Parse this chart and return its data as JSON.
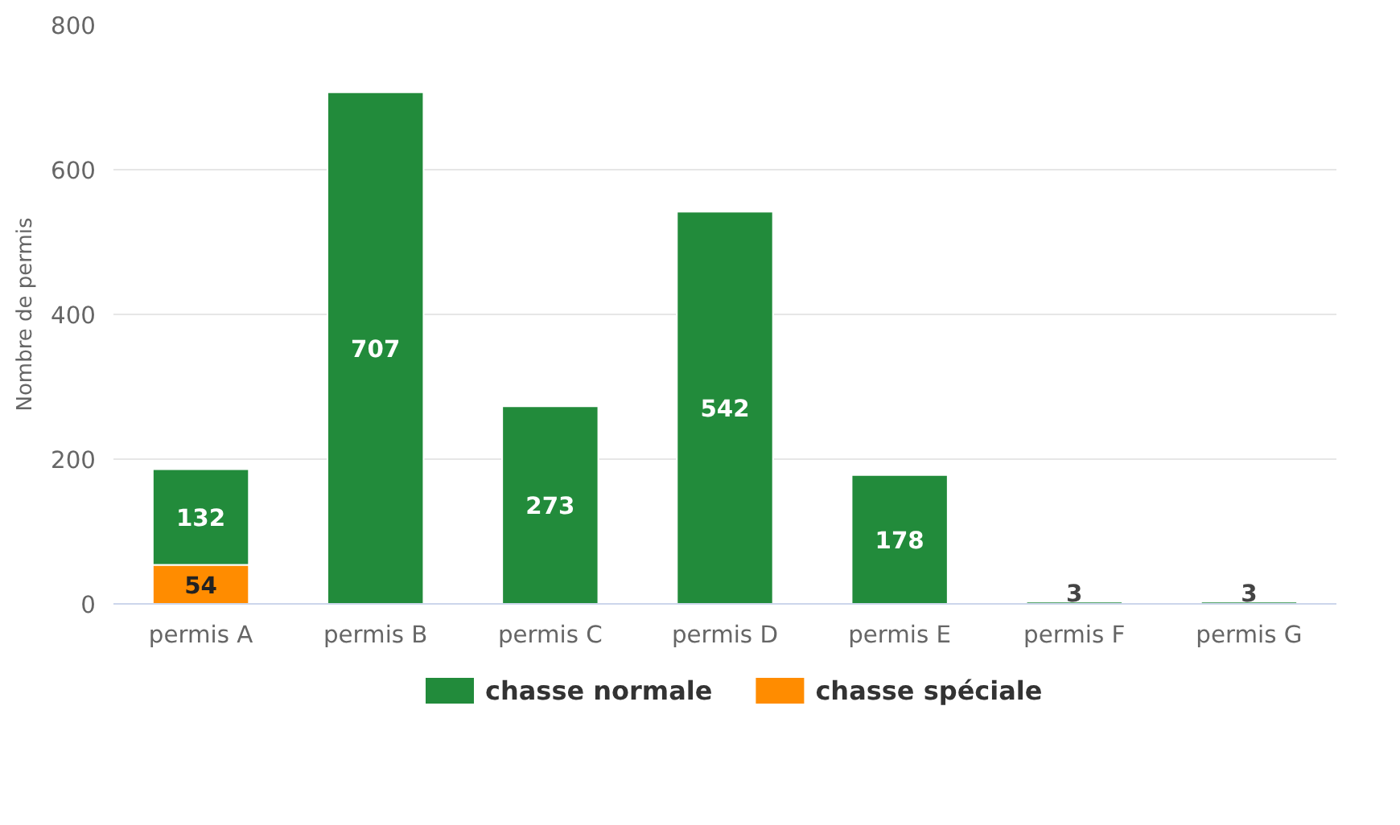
{
  "chart_data": {
    "type": "bar",
    "stacked": true,
    "ylabel": "Nombre de permis",
    "categories": [
      "permis A",
      "permis B",
      "permis C",
      "permis D",
      "permis E",
      "permis F",
      "permis G"
    ],
    "series": [
      {
        "name": "chasse spéciale",
        "color": "#ff8c00",
        "values": [
          54,
          null,
          null,
          null,
          null,
          null,
          null
        ]
      },
      {
        "name": "chasse normale",
        "color": "#228b3b",
        "values": [
          132,
          707,
          273,
          542,
          178,
          3,
          3
        ]
      }
    ],
    "ylim": [
      0,
      800
    ],
    "yticks": [
      0,
      200,
      400,
      600,
      800
    ],
    "grid": "y",
    "legend": "bottom",
    "data_labels": true
  }
}
